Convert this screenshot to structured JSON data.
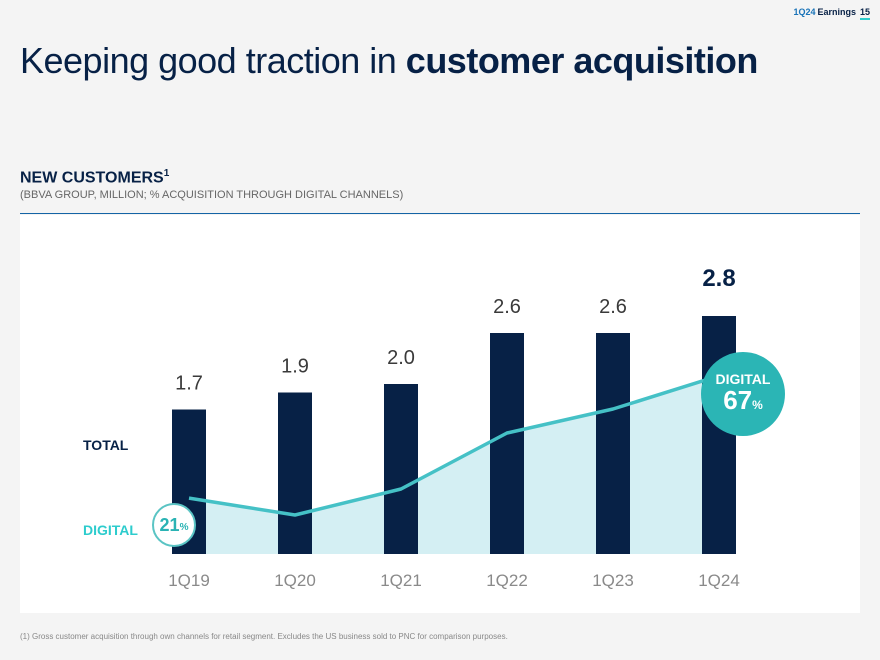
{
  "header": {
    "period": "1Q24",
    "section": "Earnings",
    "page": "15"
  },
  "title": {
    "regular": "Keeping good traction in ",
    "bold": "customer acquisition"
  },
  "section": {
    "heading": "NEW CUSTOMERS",
    "heading_sup": "1",
    "subheading": "(BBVA GROUP, MILLION; % ACQUISITION THROUGH DIGITAL CHANNELS)"
  },
  "labels": {
    "total": "TOTAL",
    "digital": "DIGITAL"
  },
  "badges": {
    "start": {
      "value": "21",
      "unit": "%"
    },
    "end": {
      "title": "DIGITAL",
      "value": "67",
      "unit": "%"
    }
  },
  "chart_data": {
    "type": "bar",
    "categories": [
      "1Q19",
      "1Q20",
      "1Q21",
      "1Q22",
      "1Q23",
      "1Q24"
    ],
    "series": [
      {
        "name": "TOTAL",
        "type": "bar",
        "values": [
          1.7,
          1.9,
          2.0,
          2.6,
          2.6,
          2.8
        ],
        "labels": [
          "1.7",
          "1.9",
          "2.0",
          "2.6",
          "2.6",
          "2.8"
        ],
        "color": "#072146"
      },
      {
        "name": "DIGITAL",
        "type": "area",
        "values": [
          21,
          null,
          null,
          null,
          null,
          67
        ],
        "color": "#2dcccd",
        "fill": "#d4eff3"
      }
    ],
    "xlabel": "",
    "ylabel": "",
    "grid": false
  },
  "footnote": "(1) Gross customer acquisition through own channels for retail segment. Excludes the US business sold to PNC for comparison purposes."
}
